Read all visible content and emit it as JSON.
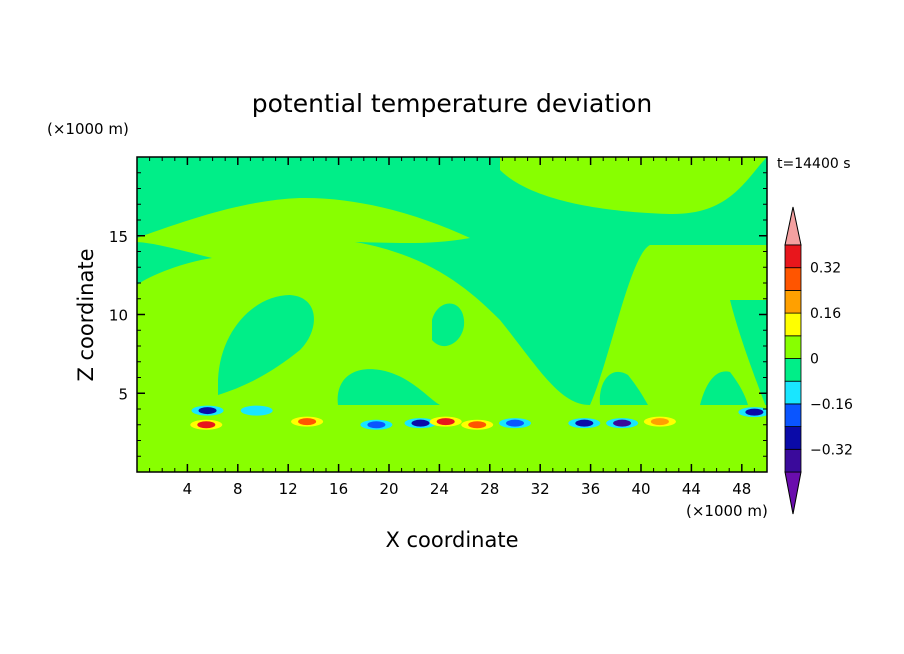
{
  "chart_data": {
    "type": "heatmap",
    "title": "potential temperature deviation",
    "time_label": "t=14400 s",
    "xlabel": "X coordinate",
    "ylabel": "Z coordinate",
    "x_unit": "(×1000 m)",
    "y_unit": "(×1000 m)",
    "xlim": [
      0,
      50
    ],
    "ylim": [
      0,
      20
    ],
    "x_ticks": [
      4,
      8,
      12,
      16,
      20,
      24,
      28,
      32,
      36,
      40,
      44,
      48
    ],
    "y_ticks": [
      5,
      10,
      15
    ],
    "colorbar": {
      "labels": [
        "0.32",
        "0.16",
        "0",
        "-0.16",
        "-0.32"
      ],
      "levels": [
        -0.4,
        -0.32,
        -0.24,
        -0.16,
        -0.08,
        0,
        0.08,
        0.16,
        0.24,
        0.32,
        0.4
      ],
      "colors": [
        "#6a0dad",
        "#3a0a9b",
        "#0a0aa8",
        "#0a55ff",
        "#19e6ff",
        "#00ee88",
        "#88ff00",
        "#ffff00",
        "#ffa000",
        "#ff5500",
        "#e8161c",
        "#f4a0a0"
      ]
    },
    "field_description_levels": {
      "background": 0.0,
      "upper_warm_region": 0.04,
      "boundary_layer_z_range": [
        0,
        4.5
      ]
    },
    "features": [
      {
        "x": 5.5,
        "z": 3.0,
        "value": 0.32
      },
      {
        "x": 5.6,
        "z": 3.9,
        "value": -0.32
      },
      {
        "x": 9.5,
        "z": 3.9,
        "value": -0.16
      },
      {
        "x": 13.5,
        "z": 3.2,
        "value": 0.24
      },
      {
        "x": 19.0,
        "z": 3.0,
        "value": -0.24
      },
      {
        "x": 22.5,
        "z": 3.1,
        "value": -0.32
      },
      {
        "x": 24.5,
        "z": 3.2,
        "value": 0.32
      },
      {
        "x": 27.0,
        "z": 3.0,
        "value": 0.24
      },
      {
        "x": 30.0,
        "z": 3.1,
        "value": -0.24
      },
      {
        "x": 35.5,
        "z": 3.1,
        "value": -0.32
      },
      {
        "x": 38.5,
        "z": 3.1,
        "value": -0.4
      },
      {
        "x": 41.5,
        "z": 3.2,
        "value": 0.16
      },
      {
        "x": 49.0,
        "z": 3.8,
        "value": -0.32
      }
    ]
  }
}
